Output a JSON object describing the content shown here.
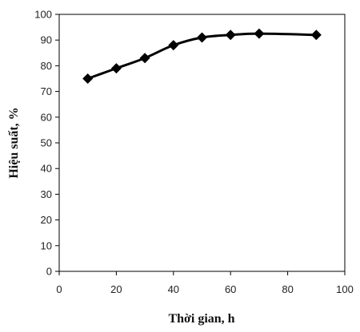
{
  "chart_data": {
    "type": "line",
    "xlabel": "Thời gian, h",
    "ylabel": "Hiệu suất, %",
    "xlim": [
      0,
      100
    ],
    "ylim": [
      0,
      100
    ],
    "xticks": [
      0,
      20,
      40,
      60,
      80,
      100
    ],
    "yticks": [
      0,
      10,
      20,
      30,
      40,
      50,
      60,
      70,
      80,
      90,
      100
    ],
    "grid": false,
    "series": [
      {
        "x": [
          10,
          20,
          30,
          40,
          50,
          60,
          70,
          90
        ],
        "y": [
          75,
          79,
          83,
          88,
          91,
          92,
          92.5,
          92
        ],
        "color": "#000000",
        "marker": "diamond"
      }
    ]
  }
}
